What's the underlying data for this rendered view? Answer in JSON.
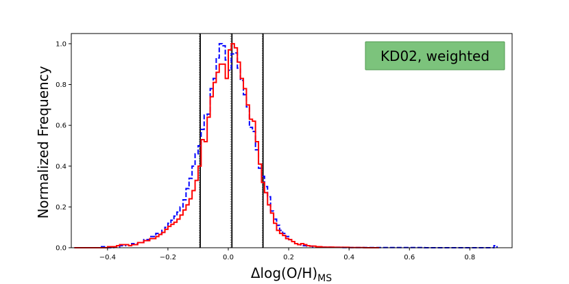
{
  "chart_data": {
    "type": "histogram",
    "xlabel": "Δlog(O/H)",
    "xlabel_subscript": "MS",
    "ylabel": "Normalized Frequency",
    "xlim": [
      -0.52,
      0.94
    ],
    "ylim": [
      0,
      1.05
    ],
    "xticks": [
      -0.4,
      -0.2,
      0.0,
      0.2,
      0.4,
      0.6,
      0.8
    ],
    "xtick_labels": [
      "−0.4",
      "−0.2",
      "0.0",
      "0.2",
      "0.4",
      "0.6",
      "0.8"
    ],
    "yticks": [
      0.0,
      0.2,
      0.4,
      0.6,
      0.8,
      1.0
    ],
    "ytick_labels": [
      "0.0",
      "0.2",
      "0.4",
      "0.6",
      "0.8",
      "1.0"
    ],
    "grid": false,
    "annotation": {
      "text": "KD02, weighted",
      "placement": "top-right",
      "background": "#7cc37c",
      "border": "#4f9a4f"
    },
    "vlines": {
      "solid": [
        -0.093,
        0.012,
        0.115
      ],
      "dotted": [
        -0.096,
        0.008,
        0.113
      ],
      "solid_color": "#000000",
      "dotted_color": "#999999"
    },
    "series": [
      {
        "style": "dashed",
        "color": "#0000ff",
        "edges": [
          -0.51,
          -0.42,
          -0.41,
          -0.38,
          -0.36,
          -0.34,
          -0.32,
          -0.3,
          -0.28,
          -0.26,
          -0.24,
          -0.22,
          -0.21,
          -0.2,
          -0.19,
          -0.18,
          -0.17,
          -0.16,
          -0.15,
          -0.14,
          -0.13,
          -0.12,
          -0.11,
          -0.1,
          -0.09,
          -0.08,
          -0.07,
          -0.06,
          -0.05,
          -0.04,
          -0.03,
          -0.02,
          -0.01,
          0.0,
          0.01,
          0.02,
          0.03,
          0.04,
          0.05,
          0.06,
          0.07,
          0.08,
          0.09,
          0.1,
          0.11,
          0.12,
          0.13,
          0.14,
          0.15,
          0.16,
          0.17,
          0.18,
          0.19,
          0.2,
          0.21,
          0.22,
          0.23,
          0.24,
          0.26,
          0.28,
          0.3,
          0.34,
          0.38,
          0.5,
          0.65,
          0.7,
          0.88,
          0.89
        ],
        "heights": [
          0.0,
          0.005,
          0.0,
          0.005,
          0.01,
          0.015,
          0.02,
          0.025,
          0.04,
          0.055,
          0.07,
          0.085,
          0.1,
          0.12,
          0.135,
          0.155,
          0.175,
          0.2,
          0.235,
          0.29,
          0.34,
          0.4,
          0.46,
          0.5,
          0.58,
          0.65,
          0.655,
          0.78,
          0.83,
          0.93,
          1.0,
          0.99,
          0.92,
          0.87,
          0.95,
          0.955,
          0.88,
          0.82,
          0.75,
          0.69,
          0.59,
          0.57,
          0.48,
          0.39,
          0.35,
          0.3,
          0.25,
          0.18,
          0.14,
          0.11,
          0.085,
          0.07,
          0.055,
          0.04,
          0.03,
          0.02,
          0.015,
          0.01,
          0.008,
          0.005,
          0.003,
          0.002,
          0.001,
          0.001,
          0.0,
          0.0,
          0.01
        ]
      },
      {
        "style": "solid",
        "color": "#ff0000",
        "edges": [
          -0.51,
          -0.4,
          -0.37,
          -0.36,
          -0.33,
          -0.32,
          -0.3,
          -0.28,
          -0.26,
          -0.24,
          -0.23,
          -0.22,
          -0.21,
          -0.2,
          -0.19,
          -0.18,
          -0.17,
          -0.16,
          -0.15,
          -0.14,
          -0.13,
          -0.12,
          -0.11,
          -0.1,
          -0.09,
          -0.08,
          -0.07,
          -0.06,
          -0.05,
          -0.04,
          -0.03,
          -0.02,
          -0.01,
          0.0,
          0.01,
          0.02,
          0.03,
          0.04,
          0.05,
          0.06,
          0.07,
          0.08,
          0.09,
          0.1,
          0.11,
          0.12,
          0.13,
          0.14,
          0.15,
          0.16,
          0.17,
          0.18,
          0.19,
          0.2,
          0.21,
          0.22,
          0.23,
          0.24,
          0.25,
          0.26,
          0.27,
          0.29,
          0.31,
          0.35,
          0.4,
          0.45,
          0.5
        ],
        "heights": [
          0.0,
          0.005,
          0.01,
          0.015,
          0.01,
          0.015,
          0.025,
          0.035,
          0.045,
          0.055,
          0.065,
          0.075,
          0.09,
          0.105,
          0.115,
          0.125,
          0.14,
          0.16,
          0.185,
          0.21,
          0.24,
          0.28,
          0.33,
          0.4,
          0.53,
          0.52,
          0.64,
          0.74,
          0.81,
          0.86,
          0.9,
          0.9,
          0.83,
          0.97,
          1.0,
          0.98,
          0.91,
          0.83,
          0.78,
          0.7,
          0.63,
          0.62,
          0.52,
          0.41,
          0.32,
          0.27,
          0.21,
          0.17,
          0.12,
          0.085,
          0.07,
          0.06,
          0.045,
          0.04,
          0.03,
          0.02,
          0.015,
          0.02,
          0.015,
          0.01,
          0.008,
          0.005,
          0.003,
          0.002,
          0.001,
          0.0
        ]
      }
    ]
  }
}
